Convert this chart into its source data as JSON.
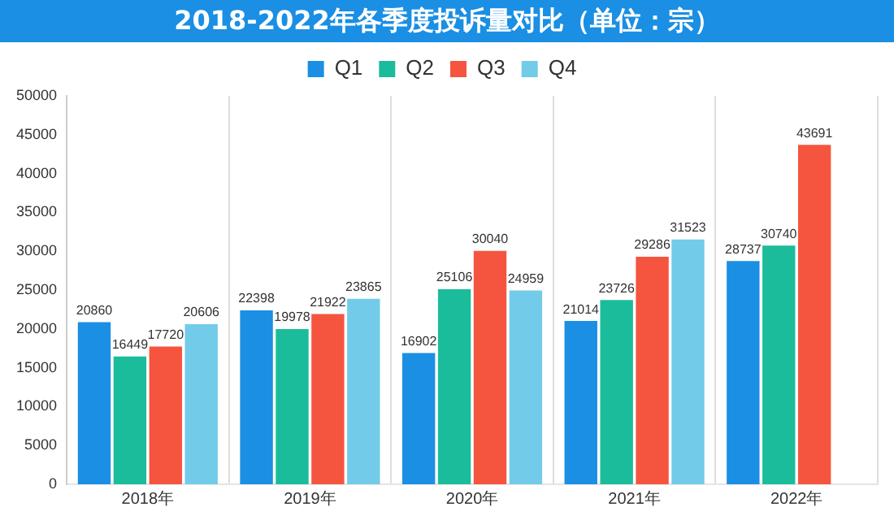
{
  "chart_data": {
    "type": "bar",
    "title": "2018-2022年各季度投诉量对比（单位：宗）",
    "categories": [
      "2018年",
      "2019年",
      "2020年",
      "2021年",
      "2022年"
    ],
    "series": [
      {
        "name": "Q1",
        "color": "#1a8fe3",
        "values": [
          20860,
          22398,
          16902,
          21014,
          28737
        ]
      },
      {
        "name": "Q2",
        "color": "#1bbc9b",
        "values": [
          16449,
          19978,
          25106,
          23726,
          30740
        ]
      },
      {
        "name": "Q3",
        "color": "#f5553f",
        "values": [
          17720,
          21922,
          30040,
          29286,
          43691
        ]
      },
      {
        "name": "Q4",
        "color": "#72cbe8",
        "values": [
          20606,
          23865,
          24959,
          31523,
          null
        ]
      }
    ],
    "ylim": [
      0,
      50000
    ],
    "yticks": [
      0,
      5000,
      10000,
      15000,
      20000,
      25000,
      30000,
      35000,
      40000,
      45000,
      50000
    ],
    "grid": "x",
    "legend": "top",
    "data_labels": true
  }
}
